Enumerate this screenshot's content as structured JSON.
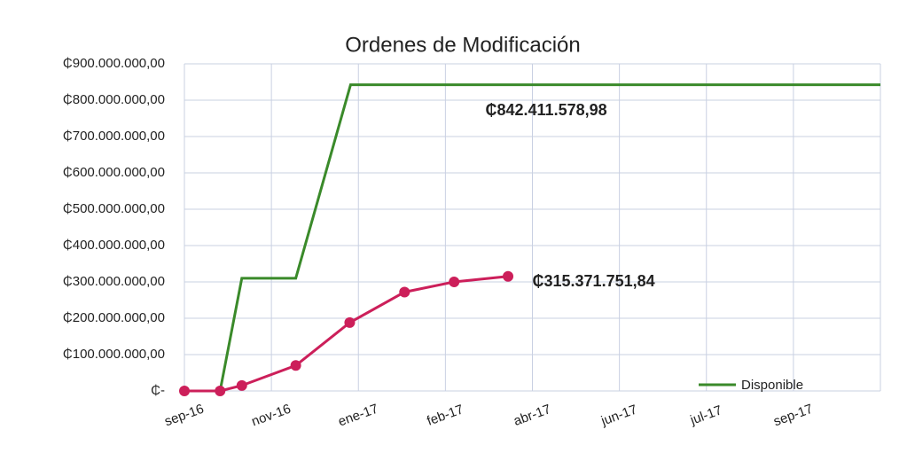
{
  "chart_data": {
    "type": "line",
    "title": "Ordenes de Modificación",
    "xlim": [
      0,
      8
    ],
    "xticks": [
      {
        "value": 0,
        "label": "sep-16"
      },
      {
        "value": 1,
        "label": "nov-16"
      },
      {
        "value": 2,
        "label": "ene-17"
      },
      {
        "value": 3,
        "label": "feb-17"
      },
      {
        "value": 4,
        "label": "abr-17"
      },
      {
        "value": 5,
        "label": "jun-17"
      },
      {
        "value": 6,
        "label": "jul-17"
      },
      {
        "value": 7,
        "label": "sep-17"
      }
    ],
    "ylim": [
      0,
      900000000
    ],
    "yticks": [
      {
        "value": 0,
        "label": "₵-"
      },
      {
        "value": 100000000,
        "label": "₵100.000.000,00"
      },
      {
        "value": 200000000,
        "label": "₵200.000.000,00"
      },
      {
        "value": 300000000,
        "label": "₵300.000.000,00"
      },
      {
        "value": 400000000,
        "label": "₵400.000.000,00"
      },
      {
        "value": 500000000,
        "label": "₵500.000.000,00"
      },
      {
        "value": 600000000,
        "label": "₵600.000.000,00"
      },
      {
        "value": 700000000,
        "label": "₵700.000.000,00"
      },
      {
        "value": 800000000,
        "label": "₵800.000.000,00"
      },
      {
        "value": 900000000,
        "label": "₵900.000.000,00"
      }
    ],
    "grid": true,
    "legend": "lower right",
    "series": [
      {
        "name": "Disponible",
        "color": "#3a8a2a",
        "markers": false,
        "x": [
          0.41,
          0.66,
          1.28,
          1.91,
          8
        ],
        "values": [
          0,
          310000000,
          310000000,
          842411578.98,
          842411578.98
        ]
      },
      {
        "color": "#cc1f5a",
        "markers": true,
        "x": [
          0,
          0.41,
          0.66,
          1.28,
          1.9,
          2.53,
          3.1,
          3.72
        ],
        "values": [
          0,
          0,
          15000000,
          70000000,
          188000000,
          272000000,
          300000000,
          315371751.84
        ]
      }
    ],
    "annotations": [
      {
        "text": "₵842.411.578,98",
        "x": 3.46,
        "y": 770000000,
        "color": "#1f5a10"
      },
      {
        "text": "₵315.371.751,84",
        "x": 4.0,
        "y": 300000000,
        "color": "#b01850"
      }
    ]
  }
}
